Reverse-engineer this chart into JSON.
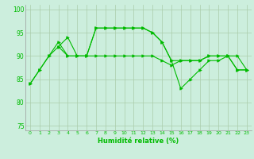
{
  "bg_color": "#cceedd",
  "grid_color": "#aaccaa",
  "line_color": "#00bb00",
  "xlabel": "Humidité relative (%)",
  "xlim": [
    -0.5,
    23.5
  ],
  "ylim": [
    74,
    101
  ],
  "yticks": [
    75,
    80,
    85,
    90,
    95,
    100
  ],
  "xticks": [
    0,
    1,
    2,
    3,
    4,
    5,
    6,
    7,
    8,
    9,
    10,
    11,
    12,
    13,
    14,
    15,
    16,
    17,
    18,
    19,
    20,
    21,
    22,
    23
  ],
  "series": [
    {
      "x": [
        0,
        1,
        2,
        3,
        4,
        5,
        6,
        7,
        8,
        9,
        10,
        11,
        12,
        13,
        14,
        15,
        16,
        17,
        18,
        19,
        20,
        21,
        22,
        23
      ],
      "y": [
        84,
        87,
        90,
        92,
        94,
        90,
        90,
        96,
        96,
        96,
        96,
        96,
        96,
        95,
        93,
        89,
        89,
        89,
        89,
        90,
        90,
        90,
        87,
        87
      ]
    },
    {
      "x": [
        0,
        1,
        2,
        3,
        4,
        5,
        6,
        7,
        8,
        9,
        10,
        11,
        12,
        13,
        14,
        15,
        16,
        17,
        18,
        19,
        20,
        21,
        22,
        23
      ],
      "y": [
        84,
        87,
        90,
        93,
        90,
        90,
        90,
        90,
        90,
        90,
        90,
        90,
        90,
        90,
        89,
        88,
        89,
        89,
        89,
        90,
        90,
        90,
        87,
        87
      ]
    },
    {
      "x": [
        3,
        4,
        5,
        6,
        7,
        8,
        9,
        10,
        11,
        12,
        13,
        14,
        15,
        16,
        17,
        18,
        19,
        20,
        21,
        22,
        23
      ],
      "y": [
        92,
        90,
        90,
        90,
        96,
        96,
        96,
        96,
        96,
        96,
        95,
        93,
        89,
        83,
        85,
        87,
        89,
        89,
        90,
        90,
        87
      ]
    }
  ]
}
